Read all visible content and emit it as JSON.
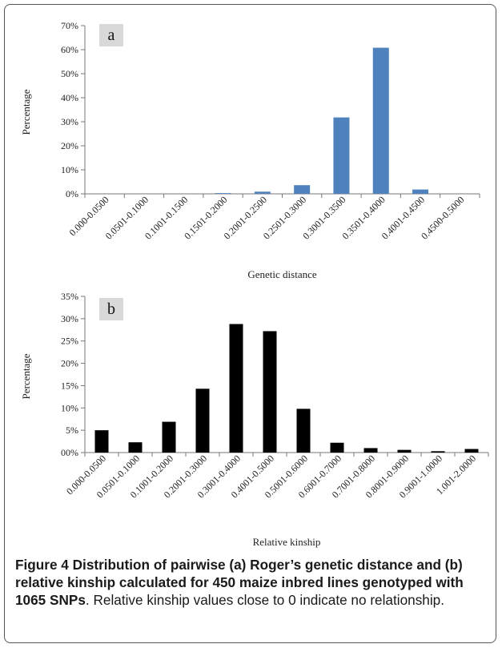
{
  "caption": {
    "bold": "Figure 4 Distribution of pairwise (a) Roger’s genetic distance and (b) relative kinship calculated for 450 maize inbred lines genotyped with 1065 SNPs",
    "rest": ". Relative kinship values close to 0 indicate no relationship."
  },
  "chart_data": [
    {
      "type": "bar",
      "panel_label": "a",
      "xlabel": "Genetic distance",
      "ylabel": "Percentage",
      "ylim": [
        0,
        70
      ],
      "ytick_labels": [
        "0%",
        "10%",
        "20%",
        "30%",
        "40%",
        "50%",
        "60%",
        "70%"
      ],
      "color": "#4F81BD",
      "grid": false,
      "categories": [
        "0.000-0.0500",
        "0.0501-0.1000",
        "0.1001-0.1500",
        "0.1501-0.2000",
        "0.2001-0.2500",
        "0.2501-0.3000",
        "0.3001-0.3500",
        "0.3501-0.4000",
        "0.4001-0.4500",
        "0.4500-0.5000"
      ],
      "values": [
        0,
        0,
        0,
        0.3,
        0.9,
        3.6,
        31.8,
        60.8,
        1.8,
        0
      ]
    },
    {
      "type": "bar",
      "panel_label": "b",
      "xlabel": "Relative kinship",
      "ylabel": "Percentage",
      "ylim": [
        0,
        35
      ],
      "ytick_labels": [
        "00%",
        "5%",
        "10%",
        "15%",
        "20%",
        "25%",
        "30%",
        "35%"
      ],
      "color": "#000000",
      "grid": false,
      "categories": [
        "0.000-0.0500",
        "0.0501-0.1000",
        "0.1001-0.2000",
        "0.2001-0.3000",
        "0.3001-0.4000",
        "0.4001-0.5000",
        "0.5001-0.6000",
        "0.6001-0.7000",
        "0.7001-0.8000",
        "0.8001-0.9000",
        "0.9001-1.0000",
        "1.001-2.0000"
      ],
      "values": [
        5.0,
        2.3,
        6.9,
        14.3,
        28.8,
        27.2,
        9.8,
        2.2,
        1.0,
        0.6,
        0.3,
        0.8
      ]
    }
  ]
}
